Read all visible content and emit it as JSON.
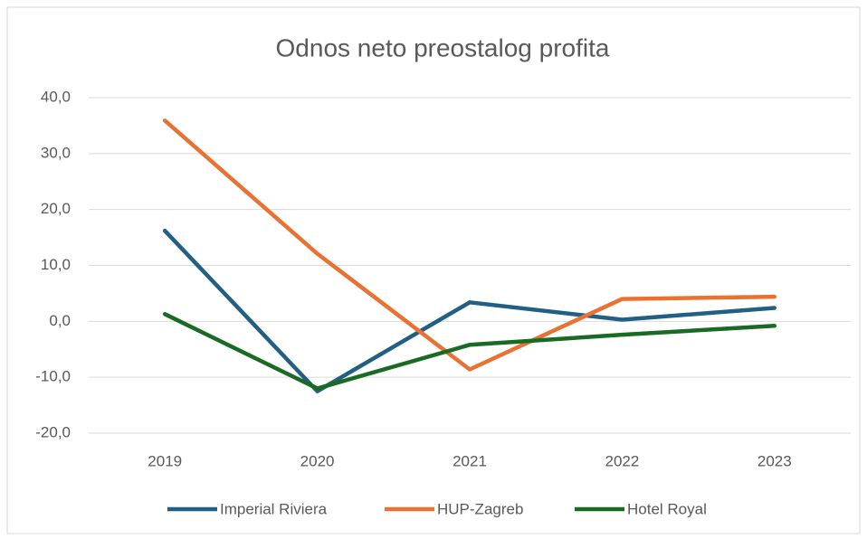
{
  "chart_data": {
    "type": "line",
    "title": "Odnos neto preostalog profita",
    "categories": [
      "2019",
      "2020",
      "2021",
      "2022",
      "2023"
    ],
    "series": [
      {
        "name": "Imperial Riviera",
        "color": "#215f84",
        "values": [
          16.2,
          -12.5,
          3.4,
          0.3,
          2.4
        ]
      },
      {
        "name": "HUP-Zagreb",
        "color": "#e97132",
        "values": [
          35.9,
          12.1,
          -8.6,
          4.0,
          4.4
        ]
      },
      {
        "name": "Hotel Royal",
        "color": "#196b24",
        "values": [
          1.3,
          -12.0,
          -4.2,
          -2.4,
          -0.8
        ]
      }
    ],
    "ylim": [
      -20,
      40
    ],
    "yticks": [
      {
        "value": -20,
        "label": "-20,0"
      },
      {
        "value": -10,
        "label": "-10,0"
      },
      {
        "value": 0,
        "label": "0,0"
      },
      {
        "value": 10,
        "label": "10,0"
      },
      {
        "value": 20,
        "label": "20,0"
      },
      {
        "value": 30,
        "label": "30,0"
      },
      {
        "value": 40,
        "label": "40,0"
      }
    ],
    "grid": true,
    "legend": "bottom"
  }
}
